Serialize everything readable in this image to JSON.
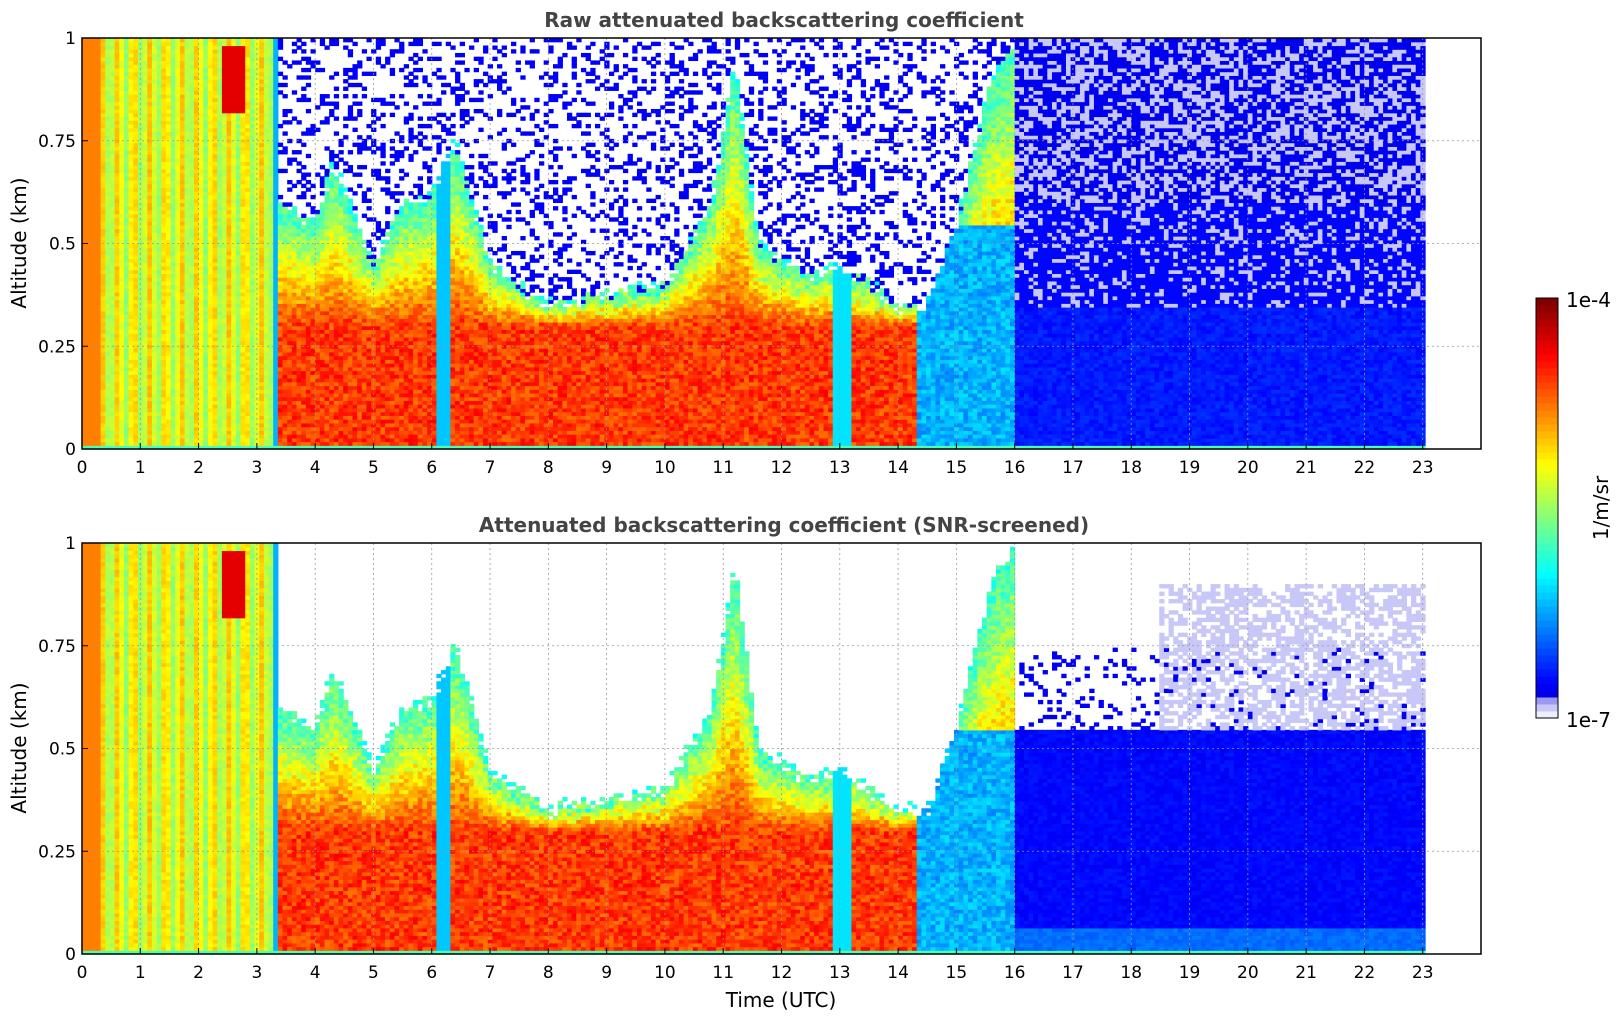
{
  "chart_data": [
    {
      "type": "heatmap",
      "title": "Raw attenuated backscattering coefficient",
      "xlabel": "",
      "ylabel": "Altitude (km)",
      "xlim": [
        0,
        24
      ],
      "ylim": [
        0,
        1
      ],
      "x_ticks": [
        "0",
        "1",
        "2",
        "3",
        "4",
        "5",
        "6",
        "7",
        "8",
        "9",
        "10",
        "11",
        "12",
        "13",
        "14",
        "15",
        "16",
        "17",
        "18",
        "19",
        "20",
        "21",
        "22",
        "23"
      ],
      "y_ticks": [
        "0",
        "0.25",
        "0.5",
        "0.75",
        "1"
      ],
      "grid": true,
      "data_end_hour": 23,
      "regions": [
        {
          "from": 0,
          "to": 3.4,
          "description_level": "high uniform column"
        },
        {
          "from": 3.4,
          "to": 16,
          "description_level": "aerosol boundary layer up to ~0.5 km"
        },
        {
          "from": 16,
          "to": 23,
          "description_level": "weak signal, noisy"
        }
      ]
    },
    {
      "type": "heatmap",
      "title": "Attenuated backscattering coefficient (SNR-screened)",
      "xlabel": "Time (UTC)",
      "ylabel": "Altitude (km)",
      "xlim": [
        0,
        24
      ],
      "ylim": [
        0,
        1
      ],
      "x_ticks": [
        "0",
        "1",
        "2",
        "3",
        "4",
        "5",
        "6",
        "7",
        "8",
        "9",
        "10",
        "11",
        "12",
        "13",
        "14",
        "15",
        "16",
        "17",
        "18",
        "19",
        "20",
        "21",
        "22",
        "23"
      ],
      "y_ticks": [
        "0",
        "0.25",
        "0.5",
        "0.75",
        "1"
      ],
      "grid": true,
      "data_end_hour": 23
    }
  ],
  "colorbar": {
    "label": "1/m/sr",
    "max_label": "1e-4",
    "min_label": "1e-7",
    "colormap": "jet",
    "low_colors": [
      "#eeeeff",
      "#c8c8f8",
      "#9a9af0"
    ]
  }
}
